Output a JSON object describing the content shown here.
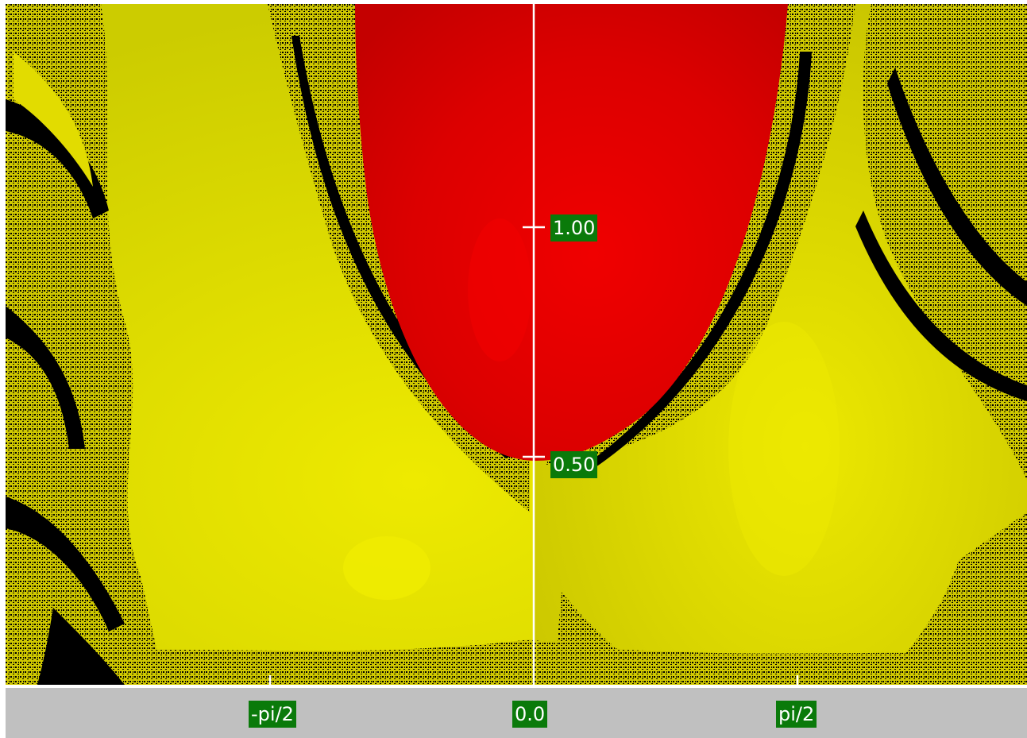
{
  "colors": {
    "label_bg": "#0a7a0a",
    "label_text": "#ffffff",
    "axis": "#ffffff",
    "axis_bar": "#c0c0c0",
    "fractal_yellow": "#e6e000",
    "fractal_red": "#e60000",
    "fractal_black": "#000000"
  },
  "y_axis": {
    "ticks": [
      {
        "label": "1.00"
      },
      {
        "label": "0.50"
      }
    ]
  },
  "x_axis": {
    "ticks": [
      {
        "label": "-pi/2"
      },
      {
        "label": "0.0"
      },
      {
        "label": "pi/2"
      }
    ]
  }
}
